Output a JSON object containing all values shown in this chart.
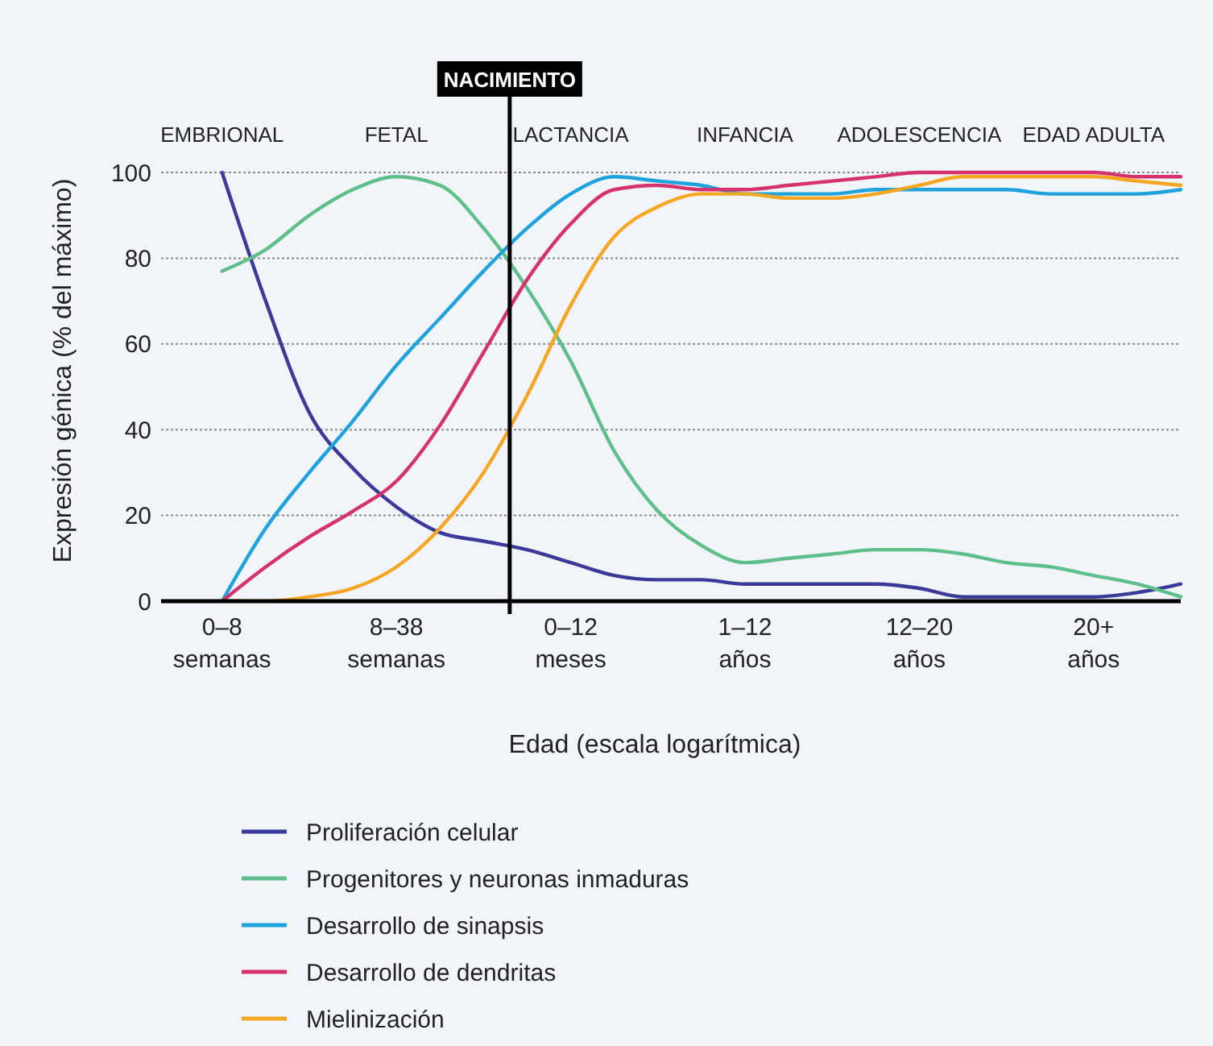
{
  "chart_data": {
    "type": "line",
    "xlabel": "Edad (escala logarítmica)",
    "ylabel": "Expresión génica (% del máximo)",
    "categories": [
      "0–8\nsemanas",
      null,
      null,
      null,
      "8–38\nsemanas",
      null,
      null,
      null,
      "0–12\nmeses",
      null,
      null,
      null,
      "1–12\naños",
      null,
      null,
      null,
      "12–20\naños",
      null,
      null,
      null,
      "20+\naños",
      null,
      null
    ],
    "ylim": [
      0,
      100
    ],
    "yticks": [
      0,
      20,
      40,
      60,
      80,
      100
    ],
    "grid": "y",
    "legend": "bottom",
    "marker": "none",
    "line_style": "solid",
    "annotations": [
      "EMBRIONAL",
      "FETAL",
      "LACTANCIA",
      "INFANCIA",
      "ADOLESCENCIA",
      "EDAD ADULTA",
      "NACIMIENTO"
    ],
    "series": [
      {
        "name": "Proliferación celular",
        "color": "#3b3a98",
        "values": [
          100,
          70,
          44,
          31,
          22,
          16,
          14,
          12,
          9,
          6,
          5,
          5,
          4,
          4,
          4,
          4,
          3,
          1,
          1,
          1,
          1,
          2,
          4
        ]
      },
      {
        "name": "Progenitores y neuronas inmaduras",
        "color": "#5fbf8a",
        "values": [
          77,
          82,
          90,
          96,
          99,
          97,
          87,
          73,
          56,
          35,
          21,
          13,
          9,
          10,
          11,
          12,
          12,
          11,
          9,
          8,
          6,
          4,
          1
        ]
      },
      {
        "name": "Desarrollo de sinapsis",
        "color": "#1fa3dc",
        "values": [
          0,
          17,
          30,
          42,
          55,
          66,
          77,
          87,
          95,
          99,
          98,
          97,
          95,
          95,
          95,
          96,
          96,
          96,
          96,
          95,
          95,
          95,
          96
        ]
      },
      {
        "name": "Desarrollo de dendritas",
        "color": "#d6336c",
        "values": [
          0,
          8,
          15,
          21,
          28,
          41,
          58,
          75,
          88,
          96,
          97,
          96,
          96,
          97,
          98,
          99,
          100,
          100,
          100,
          100,
          100,
          99,
          99
        ]
      },
      {
        "name": "Mielinización",
        "color": "#f5a623",
        "values": [
          0,
          0,
          1,
          3,
          8,
          17,
          30,
          48,
          69,
          85,
          92,
          95,
          95,
          94,
          94,
          95,
          97,
          99,
          99,
          99,
          99,
          98,
          97
        ]
      }
    ]
  }
}
